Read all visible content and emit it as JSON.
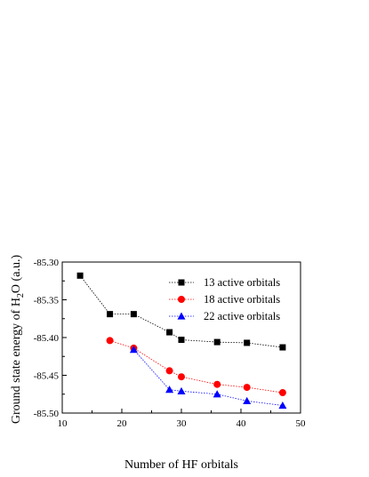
{
  "chart_data": {
    "type": "line",
    "title": "",
    "xlabel": "Number of HF orbitals",
    "ylabel": {
      "prefix": "Ground state energy of H",
      "sub1": "2",
      "mid": "O",
      "suffix": " (a.u.)"
    },
    "xlim": [
      10,
      50
    ],
    "ylim": [
      -85.5,
      -85.3
    ],
    "xticks": [
      10,
      20,
      30,
      40,
      50
    ],
    "xtick_labels": [
      "10",
      "20",
      "30",
      "40",
      "50"
    ],
    "yticks": [
      -85.3,
      -85.35,
      -85.4,
      -85.45,
      -85.5
    ],
    "ytick_labels": [
      "-85.30",
      "-85.35",
      "-85.40",
      "-85.45",
      "-85.50"
    ],
    "grid": false,
    "legend_position": "top-right",
    "series": [
      {
        "name": "13 active orbitals",
        "color": "#000000",
        "marker": "square",
        "x": [
          13,
          18,
          22,
          28,
          30,
          36,
          41,
          47
        ],
        "y": [
          -85.318,
          -85.369,
          -85.369,
          -85.393,
          -85.403,
          -85.406,
          -85.407,
          -85.413
        ]
      },
      {
        "name": "18 active orbitals",
        "color": "#ff0000",
        "marker": "circle",
        "x": [
          18,
          22,
          28,
          30,
          36,
          41,
          47
        ],
        "y": [
          -85.404,
          -85.414,
          -85.444,
          -85.452,
          -85.462,
          -85.466,
          -85.473
        ]
      },
      {
        "name": "22 active orbitals",
        "color": "#0000ff",
        "marker": "triangle",
        "x": [
          22,
          28,
          30,
          36,
          41,
          47
        ],
        "y": [
          -85.416,
          -85.469,
          -85.471,
          -85.475,
          -85.484,
          -85.49
        ]
      }
    ]
  }
}
